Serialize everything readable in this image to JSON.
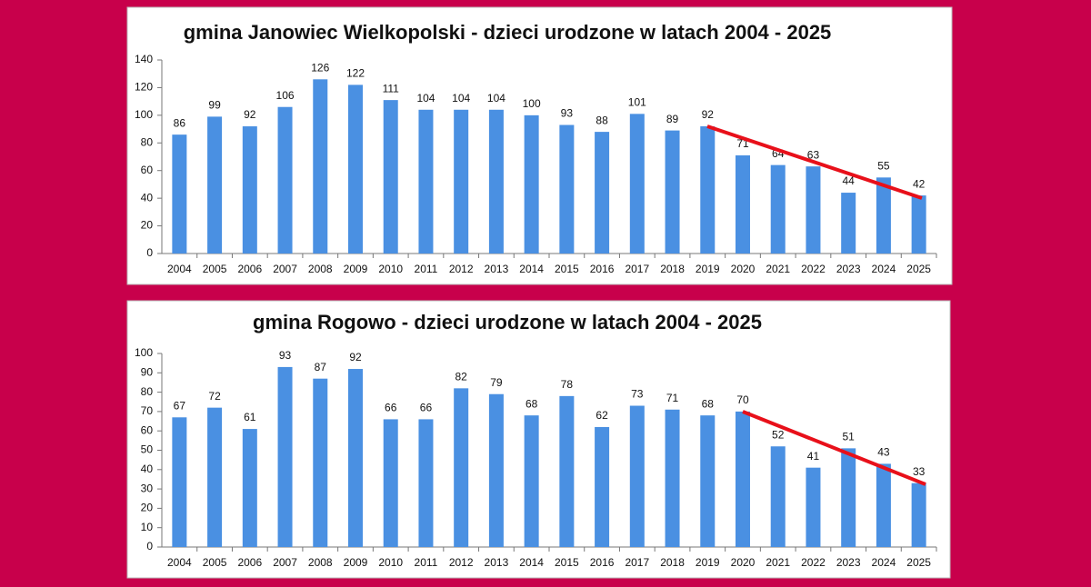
{
  "chart_data": [
    {
      "type": "bar",
      "title": "gmina Janowiec Wielkopolski - dzieci urodzone w latach 2004 - 2025",
      "categories": [
        "2004",
        "2005",
        "2006",
        "2007",
        "2008",
        "2009",
        "2010",
        "2011",
        "2012",
        "2013",
        "2014",
        "2015",
        "2016",
        "2017",
        "2018",
        "2019",
        "2020",
        "2021",
        "2022",
        "2023",
        "2024",
        "2025"
      ],
      "values": [
        86,
        99,
        92,
        106,
        126,
        122,
        111,
        104,
        104,
        104,
        100,
        93,
        88,
        101,
        89,
        92,
        71,
        64,
        63,
        44,
        55,
        42
      ],
      "color": "#4a90e2",
      "ylim": [
        0,
        140
      ],
      "yticks": [
        0,
        20,
        40,
        60,
        80,
        100,
        120,
        140
      ],
      "grid": false
    },
    {
      "type": "bar",
      "title": "gmina Rogowo - dzieci urodzone w latach 2004 - 2025",
      "categories": [
        "2004",
        "2005",
        "2006",
        "2007",
        "2008",
        "2009",
        "2010",
        "2011",
        "2012",
        "2013",
        "2014",
        "2015",
        "2016",
        "2017",
        "2018",
        "2019",
        "2020",
        "2021",
        "2022",
        "2023",
        "2024",
        "2025"
      ],
      "values": [
        67,
        72,
        61,
        93,
        87,
        92,
        66,
        66,
        82,
        79,
        68,
        78,
        62,
        73,
        71,
        68,
        70,
        52,
        41,
        51,
        43,
        33
      ],
      "color": "#4a90e2",
      "ylim": [
        0,
        100
      ],
      "yticks": [
        0,
        10,
        20,
        30,
        40,
        50,
        60,
        70,
        80,
        90,
        100
      ],
      "grid": false
    }
  ]
}
